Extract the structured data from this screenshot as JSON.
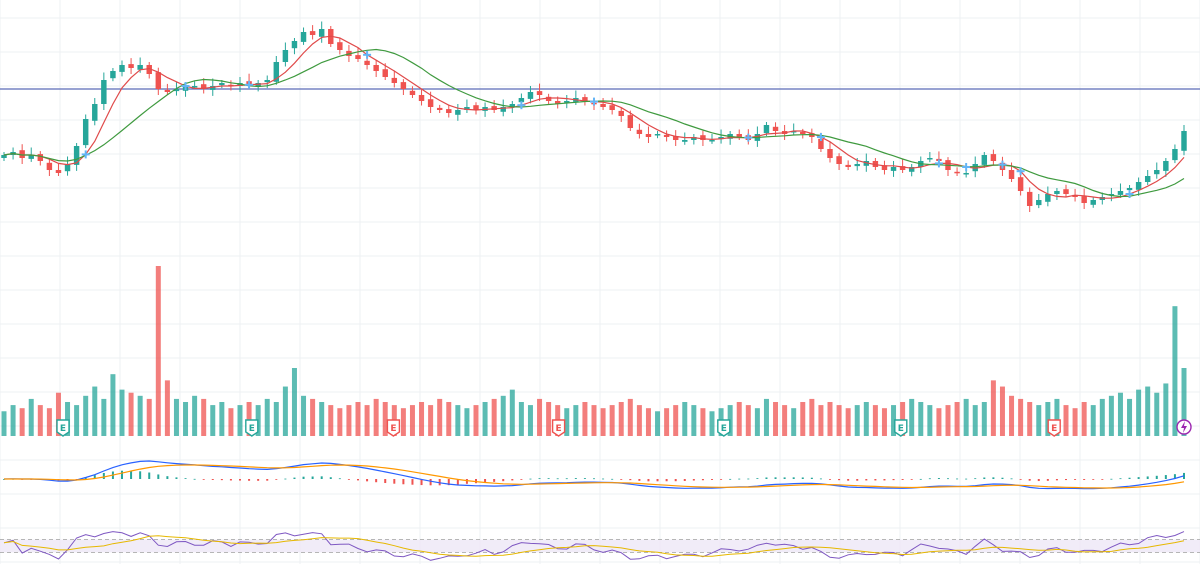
{
  "colors": {
    "up": "#26a69a",
    "down": "#ef5350",
    "ma_fast": "#e04a4a",
    "ma_slow": "#3f9a3f",
    "macd": "#2962ff",
    "signal": "#ff9800",
    "rsi": "#7e57c2",
    "rsi_ma": "#e6b800",
    "hline": "#5b6bb8",
    "grid": "#eef0f3",
    "marker": "#64b5f6"
  },
  "chart_data": [
    {
      "type": "candlestick",
      "title": "",
      "grid": true,
      "ylim": [
        0,
        100
      ],
      "horizontal_line": 77,
      "closes": [
        55,
        56,
        54,
        55,
        53,
        50,
        49,
        52,
        58,
        67,
        72,
        80,
        83,
        85,
        84,
        85,
        82,
        77,
        76,
        77,
        78,
        78,
        77,
        78,
        79,
        78,
        79,
        78,
        79,
        80,
        86,
        90,
        93,
        96,
        95,
        97,
        92,
        90,
        88,
        87,
        85,
        83,
        81,
        79,
        77,
        75,
        73,
        71,
        70,
        69,
        70,
        71,
        70,
        71,
        70,
        71,
        72,
        74,
        76,
        75,
        73,
        72,
        73,
        74,
        73,
        72,
        71,
        70,
        68,
        64,
        62,
        61,
        62,
        61,
        60,
        60,
        61,
        60,
        60,
        61,
        62,
        61,
        60,
        62,
        65,
        63,
        62,
        63,
        62,
        61,
        57,
        54,
        52,
        51,
        52,
        53,
        51,
        50,
        51,
        50,
        51,
        53,
        54,
        53,
        50,
        49,
        49,
        52,
        55,
        53,
        50,
        47,
        43,
        38,
        40,
        42,
        43,
        42,
        41,
        39,
        40,
        41,
        42,
        43,
        44,
        46,
        48,
        50,
        53,
        57,
        63
      ],
      "volume": [
        8,
        10,
        9,
        12,
        10,
        9,
        14,
        11,
        10,
        13,
        16,
        12,
        20,
        15,
        14,
        13,
        12,
        55,
        18,
        12,
        11,
        13,
        12,
        10,
        11,
        9,
        10,
        11,
        10,
        12,
        11,
        16,
        22,
        13,
        12,
        11,
        10,
        9,
        10,
        11,
        10,
        12,
        11,
        10,
        9,
        10,
        11,
        10,
        12,
        11,
        10,
        9,
        10,
        11,
        12,
        13,
        15,
        11,
        10,
        12,
        11,
        10,
        9,
        10,
        11,
        10,
        9,
        10,
        11,
        12,
        10,
        9,
        8,
        9,
        10,
        11,
        10,
        9,
        8,
        9,
        10,
        11,
        10,
        9,
        12,
        11,
        10,
        9,
        11,
        12,
        10,
        11,
        10,
        9,
        10,
        11,
        10,
        9,
        10,
        11,
        12,
        11,
        10,
        9,
        10,
        11,
        12,
        10,
        11,
        18,
        16,
        13,
        12,
        11,
        10,
        11,
        12,
        10,
        9,
        11,
        10,
        12,
        13,
        14,
        12,
        15,
        16,
        14,
        17,
        42,
        22
      ],
      "earnings_markers": [
        {
          "label": "E",
          "kind": "up",
          "pos": 0.05
        },
        {
          "label": "E",
          "kind": "up",
          "pos": 0.21
        },
        {
          "label": "E",
          "kind": "down",
          "pos": 0.33
        },
        {
          "label": "E",
          "kind": "down",
          "pos": 0.47
        },
        {
          "label": "E",
          "kind": "up",
          "pos": 0.61
        },
        {
          "label": "E",
          "kind": "up",
          "pos": 0.76
        },
        {
          "label": "E",
          "kind": "down",
          "pos": 0.89
        }
      ]
    },
    {
      "type": "line",
      "series": [
        {
          "values": []
        },
        {
          "values": []
        }
      ]
    },
    {
      "type": "line",
      "ylim": [
        0,
        100
      ],
      "bands": [
        30,
        70
      ]
    }
  ]
}
